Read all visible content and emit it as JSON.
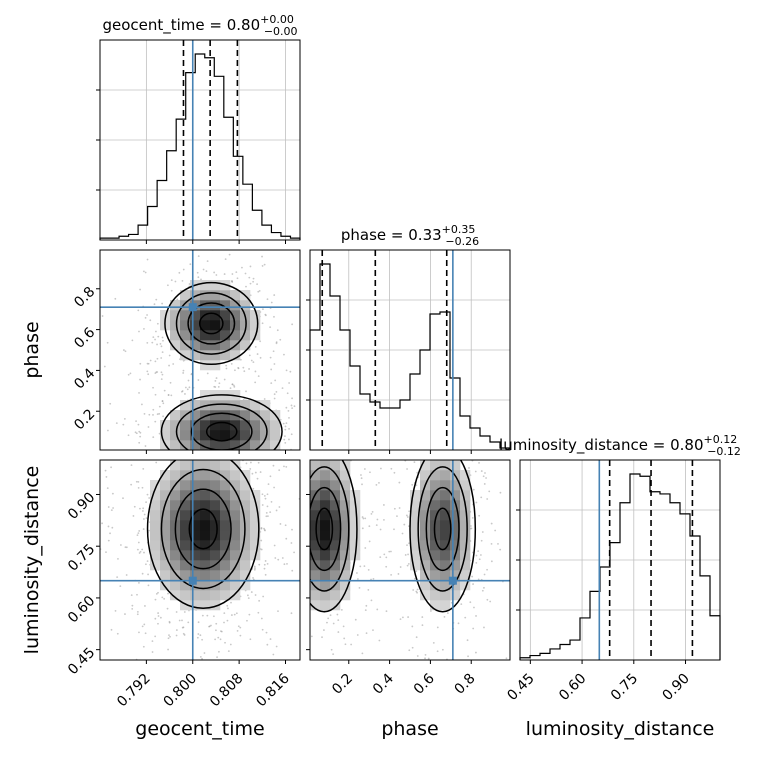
{
  "chart_data": {
    "type": "corner",
    "parameters": [
      {
        "name": "geocent_time",
        "xlabel": "geocent_time",
        "title_prefix": "geocent_time = 0.80",
        "title_plus": "+0.00",
        "title_minus": "−0.00",
        "range": [
          0.784,
          0.8185
        ],
        "ticks": [
          0.792,
          0.8,
          0.808,
          0.816
        ],
        "tick_labels": [
          "0.792",
          "0.800",
          "0.808",
          "0.816"
        ],
        "truth": 0.8,
        "quantiles": [
          0.7984,
          0.803,
          0.8077
        ],
        "hist": [
          1,
          1,
          2,
          3,
          8,
          18,
          32,
          48,
          65,
          90,
          100,
          98,
          88,
          66,
          45,
          30,
          16,
          8,
          4,
          2,
          1
        ]
      },
      {
        "name": "phase",
        "xlabel": "phase",
        "ylabel": "phase",
        "title_prefix": "phase = 0.33",
        "title_plus": "+0.35",
        "title_minus": "−0.26",
        "range": [
          0.01,
          0.99
        ],
        "ticks": [
          0.2,
          0.4,
          0.6,
          0.8
        ],
        "tick_labels": [
          "0.2",
          "0.4",
          "0.6",
          "0.8"
        ],
        "truth": 0.71,
        "quantiles": [
          0.07,
          0.33,
          0.68
        ],
        "hist": [
          60,
          93,
          77,
          60,
          42,
          28,
          24,
          21,
          21,
          25,
          38,
          50,
          68,
          69,
          36,
          17,
          11,
          7,
          4,
          1
        ]
      },
      {
        "name": "luminosity_distance",
        "xlabel": "luminosity_distance",
        "ylabel": "luminosity_distance",
        "title_prefix": "luminosity_distance = 0.80",
        "title_plus": "+0.12",
        "title_minus": "−0.12",
        "range": [
          0.42,
          1.0
        ],
        "ticks": [
          0.45,
          0.6,
          0.75,
          0.9
        ],
        "tick_labels": [
          "0.45",
          "0.60",
          "0.75",
          "0.90"
        ],
        "truth": 0.65,
        "quantiles": [
          0.68,
          0.8,
          0.92
        ],
        "hist": [
          1,
          2,
          3,
          5,
          7,
          9,
          19,
          31,
          42,
          53,
          71,
          84,
          83,
          76,
          75,
          71,
          66,
          56,
          38,
          20
        ]
      }
    ],
    "pair_plots": [
      {
        "x": "geocent_time",
        "y": "phase",
        "blobs": [
          {
            "cx": 0.8032,
            "cy": 0.63,
            "sx": 0.004,
            "sy": 0.1,
            "w": 1.0
          },
          {
            "cx": 0.805,
            "cy": 0.1,
            "sx": 0.0052,
            "sy": 0.09,
            "w": 1.0
          }
        ]
      },
      {
        "x": "geocent_time",
        "y": "luminosity_distance",
        "blobs": [
          {
            "cx": 0.8018,
            "cy": 0.8,
            "sx": 0.0048,
            "sy": 0.115,
            "w": 1.0
          }
        ]
      },
      {
        "x": "phase",
        "y": "luminosity_distance",
        "blobs": [
          {
            "cx": 0.08,
            "cy": 0.8,
            "sx": 0.08,
            "sy": 0.12,
            "w": 1.0
          },
          {
            "cx": 0.66,
            "cy": 0.8,
            "sx": 0.08,
            "sy": 0.12,
            "w": 0.8
          }
        ]
      }
    ],
    "colors": {
      "truth": "#4682b4",
      "hist": "#000000",
      "grid": "#c0c0c0"
    }
  }
}
